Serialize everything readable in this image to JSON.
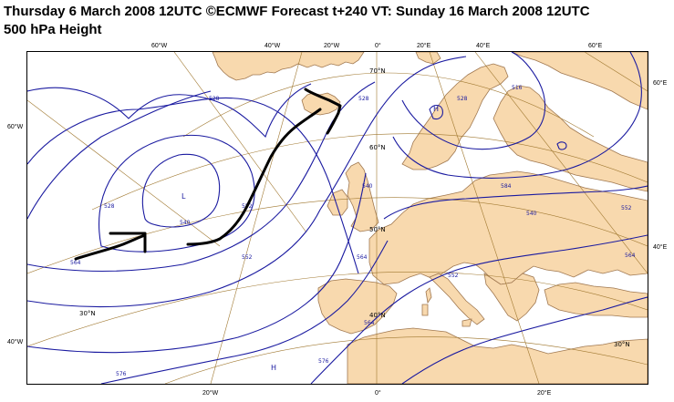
{
  "header": {
    "line1": "Thursday 6 March 2008 12UTC ©ECMWF Forecast t+240 VT: Sunday 16 March 2008 12UTC",
    "line2": "500 hPa Height"
  },
  "axis_labels": {
    "top": [
      "60°W",
      "40°W",
      "20°W",
      "0°",
      "20°E",
      "40°E",
      "60°E"
    ],
    "bottom": [
      "20°W",
      "0°",
      "20°E"
    ],
    "left": [
      "60°W",
      "40°W"
    ],
    "right": [
      "60°E",
      "40°E"
    ]
  },
  "parallel_labels": [
    "70°N",
    "60°N",
    "50°N",
    "40°N",
    "30°N",
    "30°N"
  ],
  "contour_labels": [
    "528",
    "516",
    "540",
    "528",
    "552",
    "528",
    "540",
    "552",
    "564",
    "564",
    "576",
    "552",
    "564",
    "528",
    "540",
    "552",
    "564",
    "576",
    "584"
  ],
  "systems": [
    "L",
    "H",
    "H"
  ],
  "colors": {
    "land": "#f8d9ae",
    "coastline": "#a07850",
    "contour": "#1a1aa0",
    "graticule": "#a07830",
    "annotation": "#000000"
  }
}
